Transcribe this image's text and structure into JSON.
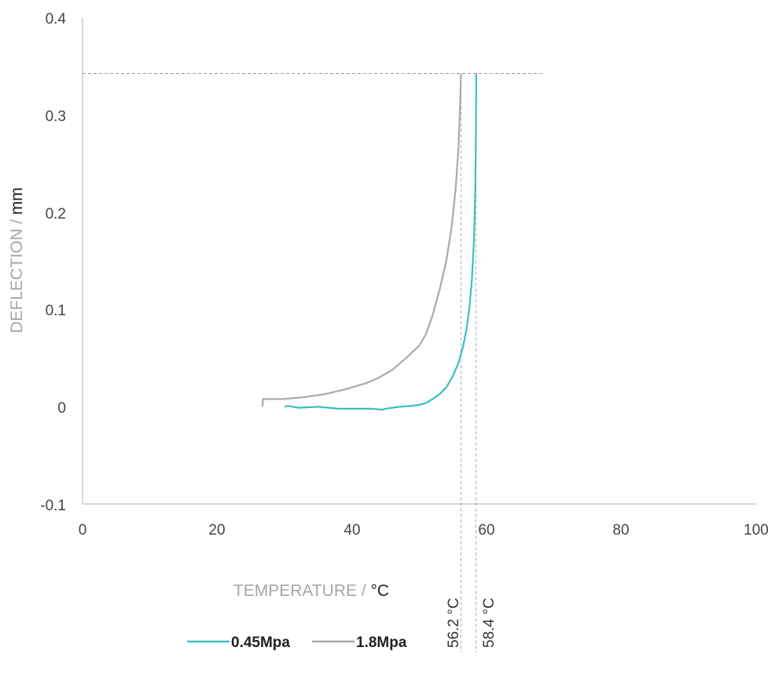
{
  "chart_data": {
    "type": "line",
    "xlabel_main": "TEMPERATURE /",
    "xlabel_unit": "°C",
    "ylabel_main": "DEFLECTION /",
    "ylabel_unit": "mm",
    "xlim": [
      0,
      100
    ],
    "ylim": [
      -0.1,
      0.4
    ],
    "x_ticks": [
      0,
      20,
      40,
      60,
      80,
      100
    ],
    "x_tick_labels": [
      "0",
      "20",
      "40",
      "60",
      "80",
      "100"
    ],
    "y_ticks": [
      -0.1,
      0,
      0.1,
      0.2,
      0.3,
      0.4
    ],
    "y_tick_labels": [
      "-0.1",
      "0",
      "0.1",
      "0.2",
      "0.3",
      "0.4"
    ],
    "grid": false,
    "legend_position": "bottom",
    "series": [
      {
        "name": "0.45Mpa",
        "color": "#3dbfbf",
        "points": [
          [
            30,
            0.0
          ],
          [
            30.5,
            0.001
          ],
          [
            32,
            -0.001
          ],
          [
            35,
            0.0
          ],
          [
            38,
            -0.002
          ],
          [
            41,
            -0.002
          ],
          [
            43,
            -0.002
          ],
          [
            44.5,
            -0.003
          ],
          [
            45,
            -0.002
          ],
          [
            47,
            0.0
          ],
          [
            49,
            0.001
          ],
          [
            50,
            0.002
          ],
          [
            51,
            0.004
          ],
          [
            52,
            0.008
          ],
          [
            53,
            0.013
          ],
          [
            54,
            0.02
          ],
          [
            55,
            0.032
          ],
          [
            55.8,
            0.045
          ],
          [
            56.5,
            0.062
          ],
          [
            57,
            0.08
          ],
          [
            57.4,
            0.1
          ],
          [
            57.8,
            0.13
          ],
          [
            58.1,
            0.17
          ],
          [
            58.3,
            0.22
          ],
          [
            58.4,
            0.28
          ],
          [
            58.45,
            0.343
          ]
        ]
      },
      {
        "name": "1.8Mpa",
        "color": "#aaaaaa",
        "points": [
          [
            26.7,
            0.0
          ],
          [
            26.8,
            0.008
          ],
          [
            28,
            0.008
          ],
          [
            30,
            0.008
          ],
          [
            33,
            0.01
          ],
          [
            36,
            0.013
          ],
          [
            39,
            0.018
          ],
          [
            42,
            0.024
          ],
          [
            44,
            0.03
          ],
          [
            46,
            0.038
          ],
          [
            48,
            0.05
          ],
          [
            50,
            0.063
          ],
          [
            51,
            0.075
          ],
          [
            52,
            0.095
          ],
          [
            53,
            0.12
          ],
          [
            54,
            0.15
          ],
          [
            54.8,
            0.185
          ],
          [
            55.4,
            0.225
          ],
          [
            55.8,
            0.265
          ],
          [
            56.0,
            0.3
          ],
          [
            56.2,
            0.343
          ]
        ]
      }
    ],
    "reference_lines": {
      "deflection_limit": 0.343,
      "vertical": [
        {
          "x": 56.2,
          "label": "56.2 °C"
        },
        {
          "x": 58.4,
          "label": "58.4 °C"
        }
      ]
    }
  }
}
